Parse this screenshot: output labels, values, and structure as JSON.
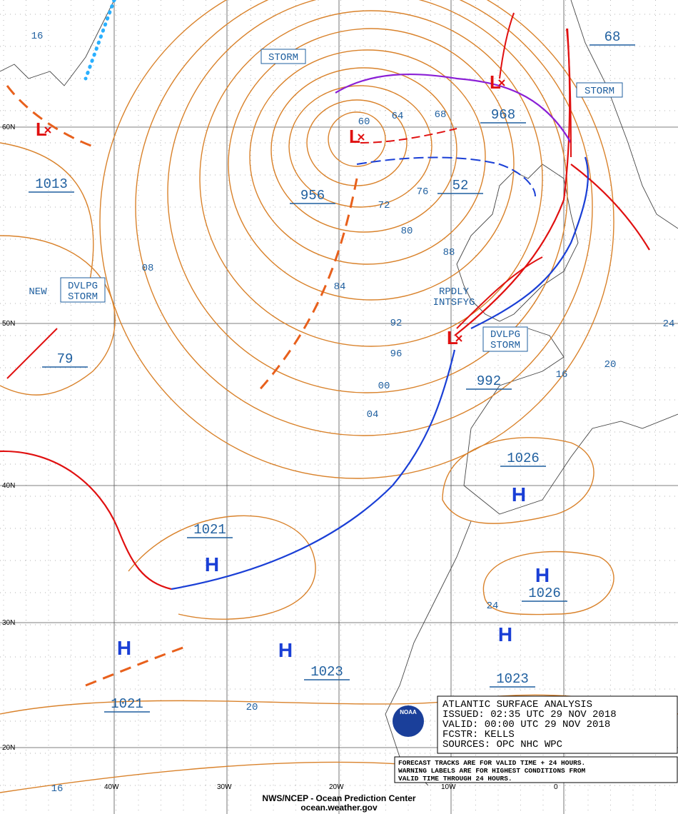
{
  "grid_labels": {
    "lat": [
      "60N",
      "50N",
      "40N",
      "30N",
      "20N"
    ],
    "lon": [
      "40W",
      "30W",
      "20W",
      "10W",
      "0"
    ]
  },
  "isobar_labels": [
    "16",
    "08",
    "60",
    "64",
    "68",
    "72",
    "76",
    "80",
    "84",
    "88",
    "92",
    "96",
    "00",
    "04",
    "16",
    "20",
    "24",
    "24",
    "20",
    "16"
  ],
  "center_labels": [
    "1013",
    "956",
    "968",
    "52",
    "79",
    "992",
    "1026",
    "1021",
    "1026",
    "1023",
    "1023",
    "1021",
    "68"
  ],
  "highs": [
    "H",
    "H",
    "H",
    "H",
    "H",
    "H"
  ],
  "lows": [
    "L",
    "L",
    "L",
    "L"
  ],
  "warnings": {
    "storm_1": "STORM",
    "storm_2": "STORM",
    "new": "NEW",
    "dvlpg_storm_1": [
      "DVLPG",
      "STORM"
    ],
    "rpdly": [
      "RPDLY",
      "INTSFYG"
    ],
    "dvlpg_storm_2": [
      "DVLPG",
      "STORM"
    ]
  },
  "info_box": [
    "ATLANTIC SURFACE ANALYSIS",
    "ISSUED: 02:35 UTC 29 NOV 2018",
    "VALID:  00:00 UTC 29 NOV 2018",
    "FCSTR:  KELLS",
    "SOURCES: OPC NHC WPC"
  ],
  "note": [
    "FORECAST TRACKS ARE FOR VALID TIME + 24 HOURS.",
    "WARNING LABELS ARE FOR HIGHEST CONDITIONS FROM",
    "VALID TIME THROUGH 24 HOURS."
  ],
  "footer": [
    "NWS/NCEP - Ocean Prediction Center",
    "ocean.weather.gov"
  ],
  "logo": "NOAA"
}
